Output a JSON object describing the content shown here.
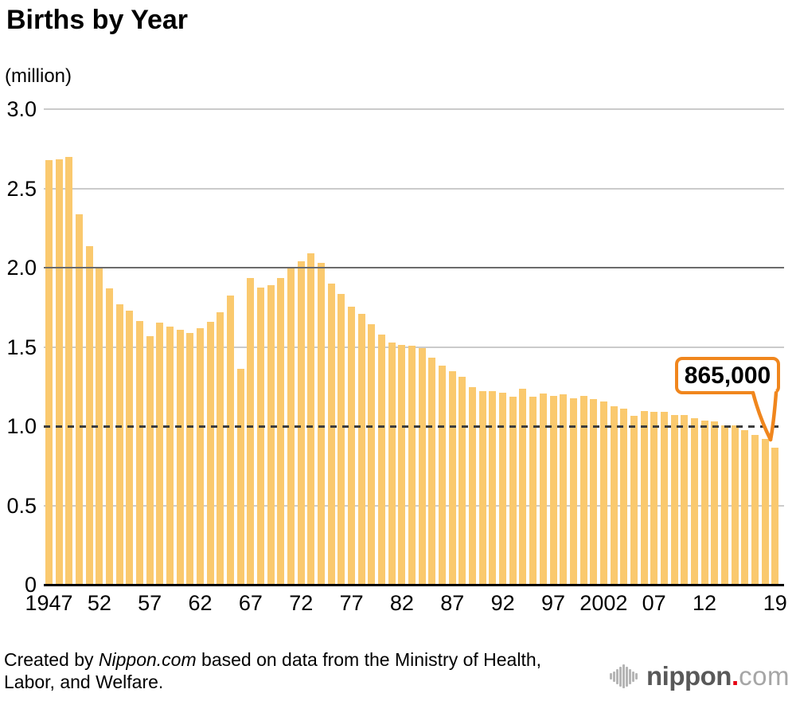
{
  "header": {
    "title": "Births by Year",
    "unit_label": "(million)"
  },
  "chart_data": {
    "type": "bar",
    "title": "Births by Year",
    "ylabel": "(million)",
    "ylim": [
      0,
      3.0
    ],
    "grid": "horizontal",
    "grid_emphasis": {
      "solid_at": 2.0,
      "dashed_at": 1.0
    },
    "years": [
      1947,
      1948,
      1949,
      1950,
      1951,
      1952,
      1953,
      1954,
      1955,
      1956,
      1957,
      1958,
      1959,
      1960,
      1961,
      1962,
      1963,
      1964,
      1965,
      1966,
      1967,
      1968,
      1969,
      1970,
      1971,
      1972,
      1973,
      1974,
      1975,
      1976,
      1977,
      1978,
      1979,
      1980,
      1981,
      1982,
      1983,
      1984,
      1985,
      1986,
      1987,
      1988,
      1989,
      1990,
      1991,
      1992,
      1993,
      1994,
      1995,
      1996,
      1997,
      1998,
      1999,
      2000,
      2001,
      2002,
      2003,
      2004,
      2005,
      2006,
      2007,
      2008,
      2009,
      2010,
      2011,
      2012,
      2013,
      2014,
      2015,
      2016,
      2017,
      2018,
      2019
    ],
    "values": [
      2.679,
      2.682,
      2.697,
      2.338,
      2.138,
      2.005,
      1.868,
      1.77,
      1.731,
      1.665,
      1.567,
      1.653,
      1.626,
      1.606,
      1.589,
      1.619,
      1.66,
      1.717,
      1.824,
      1.361,
      1.936,
      1.872,
      1.89,
      1.934,
      2.001,
      2.039,
      2.092,
      2.03,
      1.901,
      1.833,
      1.755,
      1.709,
      1.643,
      1.577,
      1.529,
      1.515,
      1.509,
      1.49,
      1.432,
      1.383,
      1.347,
      1.314,
      1.247,
      1.222,
      1.223,
      1.209,
      1.188,
      1.238,
      1.187,
      1.207,
      1.192,
      1.203,
      1.178,
      1.191,
      1.171,
      1.154,
      1.124,
      1.111,
      1.063,
      1.093,
      1.09,
      1.091,
      1.07,
      1.071,
      1.051,
      1.037,
      1.03,
      1.004,
      1.006,
      0.977,
      0.946,
      0.918,
      0.865
    ],
    "yticks": [
      {
        "value": 0,
        "label": "0"
      },
      {
        "value": 0.5,
        "label": "0.5"
      },
      {
        "value": 1.0,
        "label": "1.0"
      },
      {
        "value": 1.5,
        "label": "1.5"
      },
      {
        "value": 2.0,
        "label": "2.0"
      },
      {
        "value": 2.5,
        "label": "2.5"
      },
      {
        "value": 3.0,
        "label": "3.0"
      }
    ],
    "xticks": [
      {
        "year": 1947,
        "label": "1947"
      },
      {
        "year": 1952,
        "label": "52"
      },
      {
        "year": 1957,
        "label": "57"
      },
      {
        "year": 1962,
        "label": "62"
      },
      {
        "year": 1967,
        "label": "67"
      },
      {
        "year": 1972,
        "label": "72"
      },
      {
        "year": 1977,
        "label": "77"
      },
      {
        "year": 1982,
        "label": "82"
      },
      {
        "year": 1987,
        "label": "87"
      },
      {
        "year": 1992,
        "label": "92"
      },
      {
        "year": 1997,
        "label": "97"
      },
      {
        "year": 2002,
        "label": "2002"
      },
      {
        "year": 2007,
        "label": "07"
      },
      {
        "year": 2012,
        "label": "12"
      },
      {
        "year": 2019,
        "label": "19"
      }
    ],
    "annotation": {
      "text": "865,000",
      "target_year": 2019
    }
  },
  "styles": {
    "bar_color": "#FAC96E",
    "grid_light": "#cbcbcb",
    "grid_dark": "#6b6b6b",
    "grid_dashed": "#3d3d3d",
    "axis_color": "#000000",
    "annotation_border": "#F0861D",
    "logo_red": "#e60012",
    "logo_dark": "#595959",
    "logo_light": "#a6a6a6",
    "logo_icon": "#b5b5b5"
  },
  "footer": {
    "credit_prefix": "Created by ",
    "credit_source": "Nippon.com",
    "credit_suffix": " based on data from the Ministry of Health, Labor, and Welfare."
  },
  "logo": {
    "brand": "nippon",
    "dot": ".",
    "tld": "com"
  }
}
